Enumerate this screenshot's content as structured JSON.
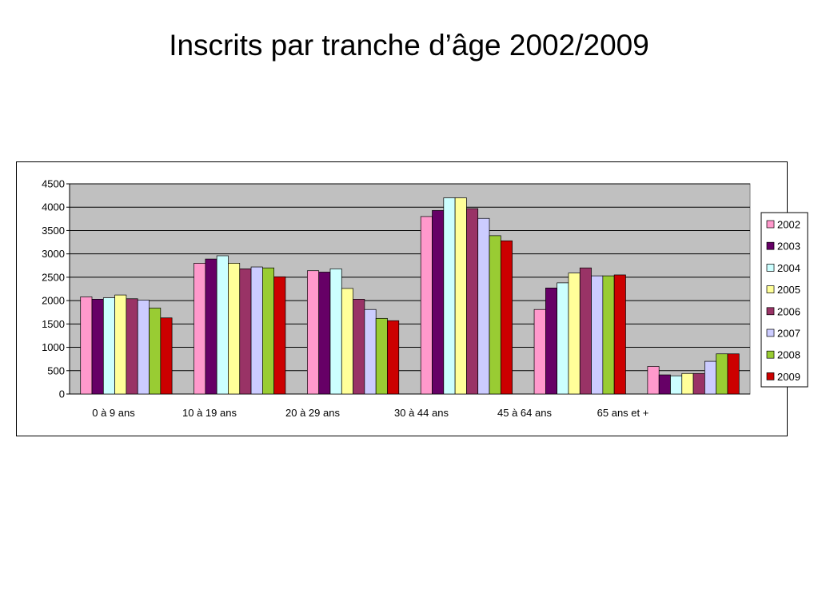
{
  "title": "Inscrits par tranche d’âge 2002/2009",
  "chart_data": {
    "type": "bar",
    "title": "",
    "xlabel": "",
    "ylabel": "",
    "ylim": [
      0,
      4500
    ],
    "yticks": [
      0,
      500,
      1000,
      1500,
      2000,
      2500,
      3000,
      3500,
      4000,
      4500
    ],
    "grid": true,
    "legend_position": "right",
    "categories": [
      "0 à 9 ans",
      "10 à 19 ans",
      "20 à 29 ans",
      "30 à 44 ans",
      "45 à 64 ans",
      "65 ans et +"
    ],
    "series": [
      {
        "name": "2002",
        "color": "#FF99CC",
        "values": [
          2080,
          2800,
          2640,
          3800,
          1810,
          590
        ]
      },
      {
        "name": "2003",
        "color": "#660066",
        "values": [
          2030,
          2890,
          2610,
          3930,
          2270,
          410
        ]
      },
      {
        "name": "2004",
        "color": "#CCFFFF",
        "values": [
          2060,
          2960,
          2680,
          4200,
          2380,
          390
        ]
      },
      {
        "name": "2005",
        "color": "#FFFF99",
        "values": [
          2120,
          2800,
          2260,
          4200,
          2590,
          440
        ]
      },
      {
        "name": "2006",
        "color": "#993366",
        "values": [
          2040,
          2680,
          2030,
          3970,
          2700,
          440
        ]
      },
      {
        "name": "2007",
        "color": "#CCCCFF",
        "values": [
          2010,
          2720,
          1810,
          3760,
          2530,
          700
        ]
      },
      {
        "name": "2008",
        "color": "#99CC33",
        "values": [
          1840,
          2700,
          1620,
          3390,
          2530,
          860
        ]
      },
      {
        "name": "2009",
        "color": "#CC0000",
        "values": [
          1630,
          2510,
          1570,
          3280,
          2550,
          860
        ]
      }
    ]
  }
}
